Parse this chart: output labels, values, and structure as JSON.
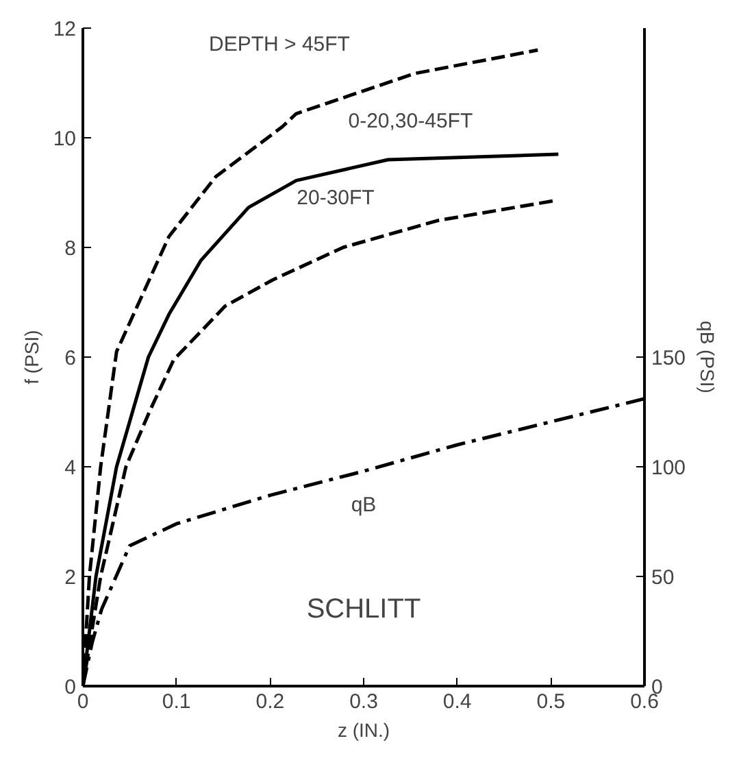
{
  "chart_data": {
    "type": "line",
    "xlabel": "z (IN.)",
    "ylabel": "f (PSI)",
    "y2label": "qB (PSI)",
    "xlim": [
      0,
      0.6
    ],
    "xticks": [
      0,
      0.1,
      0.2,
      0.3,
      0.4,
      0.5,
      0.6
    ],
    "ylim": [
      0,
      12
    ],
    "yticks": [
      0,
      2,
      4,
      6,
      8,
      10,
      12
    ],
    "y2lim": [
      0,
      300
    ],
    "y2ticks": [
      0,
      50,
      100,
      150
    ],
    "grid": false,
    "marker": "none",
    "series": [
      {
        "color": "#000000",
        "line_style": "dashed",
        "x": [
          0,
          0.007,
          0.019,
          0.036,
          0.092,
          0.142,
          0.213,
          0.228,
          0.354,
          0.486
        ],
        "values": [
          0,
          2,
          4,
          6.1,
          8.2,
          9.29,
          10.2,
          10.44,
          11.17,
          11.6
        ]
      },
      {
        "color": "#000000",
        "line_style": "solid",
        "x": [
          0,
          0.014,
          0.036,
          0.07,
          0.092,
          0.126,
          0.177,
          0.228,
          0.326,
          0.508
        ],
        "values": [
          0,
          2,
          4,
          6,
          6.78,
          7.76,
          8.73,
          9.22,
          9.6,
          9.7
        ]
      },
      {
        "color": "#000000",
        "line_style": "dashed",
        "x": [
          0,
          0.019,
          0.046,
          0.071,
          0.097,
          0.152,
          0.203,
          0.278,
          0.379,
          0.503
        ],
        "values": [
          0,
          2,
          4,
          5,
          5.95,
          6.93,
          7.41,
          8.0,
          8.49,
          8.85
        ]
      },
      {
        "color": "#000000",
        "line_style": "dashdot",
        "axis": "y2",
        "x": [
          0,
          0.01,
          0.02,
          0.05,
          0.1,
          0.2,
          0.3,
          0.4,
          0.6
        ],
        "values": [
          0,
          20,
          35,
          64,
          74,
          87,
          98,
          110,
          131
        ]
      }
    ],
    "annotations": [
      "DEPTH > 45FT",
      "0-20,30-45FT",
      "20-30FT",
      "qB",
      "SCHLITT"
    ]
  }
}
